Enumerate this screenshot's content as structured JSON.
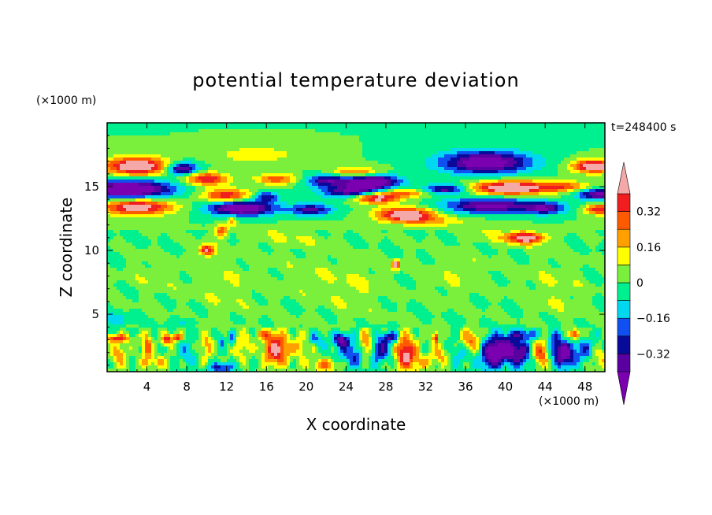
{
  "chart_data": {
    "type": "heatmap",
    "title": "potential temperature deviation",
    "xlabel": "X coordinate",
    "ylabel": "Z coordinate",
    "x_unit": "(×1000 m)",
    "z_unit": "(×1000 m)",
    "time_label": "t=248400 s",
    "xlim": [
      0,
      50
    ],
    "ylim": [
      0.5,
      20
    ],
    "x_ticks": [
      4,
      8,
      12,
      16,
      20,
      24,
      28,
      32,
      36,
      40,
      44,
      48
    ],
    "y_ticks": [
      5,
      10,
      15
    ],
    "colorbar": {
      "levels": [
        -0.4,
        -0.32,
        -0.24,
        -0.16,
        -0.08,
        0,
        0.08,
        0.16,
        0.24,
        0.32,
        0.4
      ],
      "tick_labels": [
        "0.32",
        "0.16",
        "0",
        "−0.16",
        "−0.32"
      ],
      "tick_values": [
        0.32,
        0.16,
        0,
        -0.16,
        -0.32
      ],
      "colors": [
        "#7A00B0",
        "#5A00A0",
        "#0A0A9A",
        "#1050F0",
        "#00D8F0",
        "#00F090",
        "#7AF03C",
        "#FFFF00",
        "#FFA000",
        "#FF5A00",
        "#F01E1E",
        "#F4A8A8"
      ]
    },
    "features": [
      {
        "x": 0,
        "z": 14.8,
        "value": -0.4
      },
      {
        "x": 4,
        "z": 16.5,
        "value": 0.4
      },
      {
        "x": 3,
        "z": 13.5,
        "value": 0.4
      },
      {
        "x": 7,
        "z": 16.5,
        "value": -0.32
      },
      {
        "x": 10,
        "z": 14.5,
        "value": 0.4
      },
      {
        "x": 12,
        "z": 13.3,
        "value": -0.4
      },
      {
        "x": 26,
        "z": 15,
        "value": -0.4
      },
      {
        "x": 28,
        "z": 14,
        "value": 0.4
      },
      {
        "x": 30,
        "z": 12.8,
        "value": 0.4
      },
      {
        "x": 40,
        "z": 17,
        "value": -0.4
      },
      {
        "x": 40,
        "z": 14.8,
        "value": 0.4
      },
      {
        "x": 40,
        "z": 13.5,
        "value": -0.32
      },
      {
        "x": 42,
        "z": 11,
        "value": 0.4
      },
      {
        "x": 49,
        "z": 16.5,
        "value": 0.4
      },
      {
        "x": 10,
        "z": 10,
        "value": 0.4
      },
      {
        "x": 24,
        "z": 2.2,
        "value": -0.24
      },
      {
        "x": 40,
        "z": 2.2,
        "value": -0.32
      },
      {
        "x": 46,
        "z": 2,
        "value": -0.32
      }
    ]
  }
}
